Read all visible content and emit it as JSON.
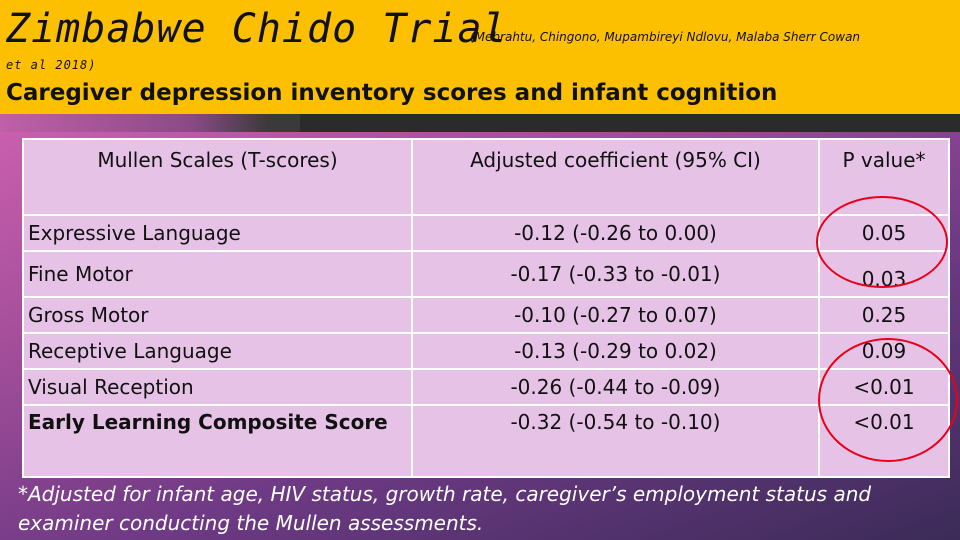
{
  "header": {
    "title": "Zimbabwe Chido Trial",
    "authors": "(Mebrahtu, Chingono, Mupambireyi Ndlovu, Malaba Sherr Cowan",
    "authors_cont": "et al 2018)",
    "subtitle": "Caregiver depression inventory scores and infant cognition"
  },
  "table": {
    "headers": [
      "Mullen Scales (T-scores)",
      "Adjusted coefficient  (95% CI)",
      "P value*"
    ],
    "rows": [
      [
        "Expressive Language",
        "-0.12 (-0.26 to 0.00)",
        "0.05"
      ],
      [
        "Fine Motor",
        "-0.17 (-0.33 to -0.01)",
        "0.03"
      ],
      [
        "Gross Motor",
        "-0.10 (-0.27 to 0.07)",
        "0.25"
      ],
      [
        "Receptive Language",
        "-0.13 (-0.29 to 0.02)",
        "0.09"
      ],
      [
        "Visual Reception",
        "-0.26 (-0.44 to -0.09)",
        "<0.01"
      ],
      [
        "Early Learning Composite  Score",
        "-0.32 (-0.54 to -0.10)",
        "<0.01"
      ]
    ]
  },
  "footnote": "*Adjusted for infant age, HIV status, growth rate, caregiver’s employment status and examiner conducting the Mullen assessments.",
  "colors": {
    "header_bg": "#fcc000",
    "table_bg": "#e6c3e6",
    "highlight_circle": "#e8001a"
  }
}
